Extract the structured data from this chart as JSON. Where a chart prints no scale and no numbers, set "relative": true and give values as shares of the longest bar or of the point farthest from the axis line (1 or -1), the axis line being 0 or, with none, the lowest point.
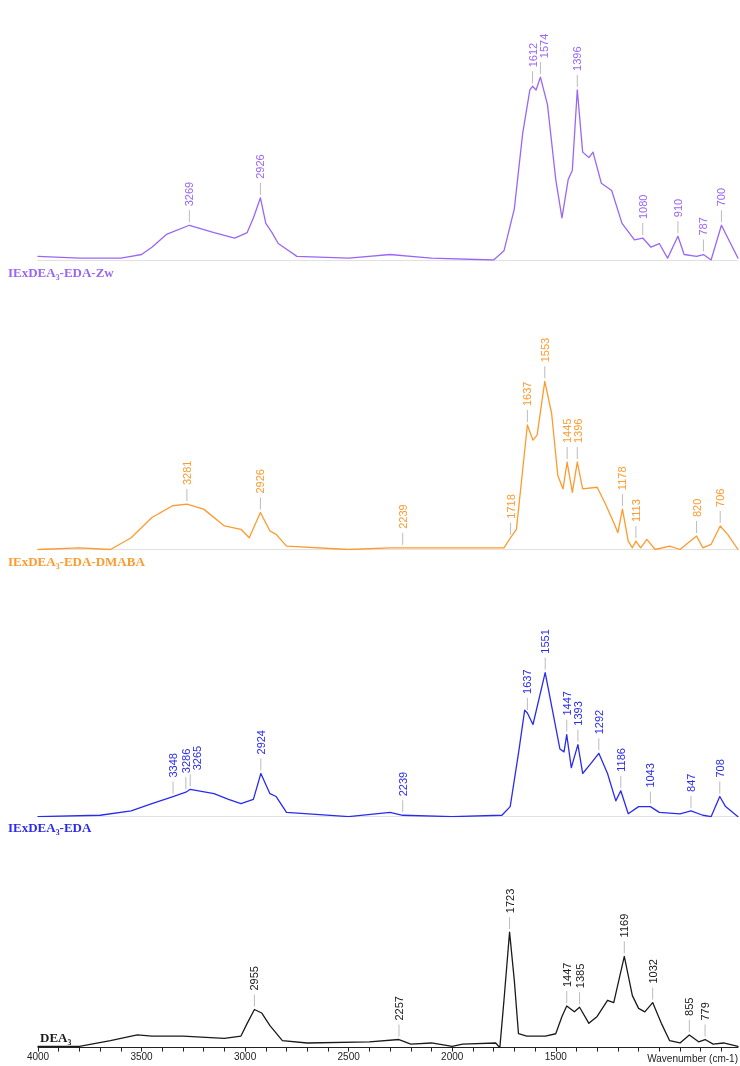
{
  "chart_data": [
    {
      "type": "line",
      "relative": true,
      "xlim": [
        4000,
        620
      ],
      "tick_labels": false,
      "series": [
        {
          "name": "IExDEA₃-EDA-Zw",
          "color": "#9a66f5",
          "x": [
            4000,
            3800,
            3600,
            3500,
            3450,
            3380,
            3269,
            3150,
            3050,
            2990,
            2960,
            2926,
            2900,
            2870,
            2840,
            2750,
            2500,
            2300,
            2100,
            1800,
            1750,
            1700,
            1660,
            1625,
            1612,
            1595,
            1574,
            1540,
            1500,
            1470,
            1440,
            1420,
            1396,
            1370,
            1340,
            1320,
            1280,
            1230,
            1180,
            1120,
            1080,
            1040,
            1000,
            960,
            910,
            880,
            820,
            787,
            750,
            700,
            660,
            620
          ],
          "values": [
            0.02,
            0.01,
            0.01,
            0.03,
            0.07,
            0.14,
            0.19,
            0.15,
            0.12,
            0.15,
            0.23,
            0.34,
            0.2,
            0.15,
            0.09,
            0.02,
            0.01,
            0.03,
            0.01,
            0,
            0.05,
            0.28,
            0.69,
            0.93,
            0.95,
            0.93,
            1,
            0.85,
            0.44,
            0.23,
            0.44,
            0.49,
            0.93,
            0.59,
            0.56,
            0.59,
            0.42,
            0.38,
            0.2,
            0.11,
            0.12,
            0.07,
            0.09,
            0.01,
            0.13,
            0.03,
            0.02,
            0.03,
            0,
            0.19,
            0.1,
            0.01
          ]
        }
      ],
      "annotations": [
        {
          "text": "3269",
          "x": 3269,
          "y": 0.19
        },
        {
          "text": "2926",
          "x": 2926,
          "y": 0.34
        },
        {
          "text": "1612",
          "x": 1612,
          "y": 0.95
        },
        {
          "text": "1574",
          "x": 1574,
          "y": 1
        },
        {
          "text": "1396",
          "x": 1396,
          "y": 0.93
        },
        {
          "text": "1080",
          "x": 1080,
          "y": 0.12
        },
        {
          "text": "910",
          "x": 910,
          "y": 0.13
        },
        {
          "text": "787",
          "x": 787,
          "y": 0.03
        },
        {
          "text": "700",
          "x": 700,
          "y": 0.19
        }
      ]
    },
    {
      "type": "line",
      "relative": true,
      "xlim": [
        4000,
        620
      ],
      "tick_labels": false,
      "series": [
        {
          "name": "IExDEA₃-EDA-DMABA",
          "color": "#ff9a2e",
          "x": [
            4000,
            3800,
            3650,
            3550,
            3450,
            3350,
            3281,
            3200,
            3100,
            3020,
            2980,
            2926,
            2880,
            2850,
            2800,
            2500,
            2300,
            2239,
            2000,
            1750,
            1718,
            1690,
            1665,
            1637,
            1610,
            1590,
            1553,
            1520,
            1490,
            1465,
            1445,
            1420,
            1396,
            1370,
            1300,
            1260,
            1220,
            1200,
            1178,
            1150,
            1130,
            1113,
            1090,
            1060,
            1020,
            950,
            900,
            850,
            820,
            790,
            750,
            706,
            670,
            620
          ],
          "values": [
            0,
            0.01,
            0,
            0.07,
            0.19,
            0.26,
            0.27,
            0.24,
            0.14,
            0.12,
            0.07,
            0.22,
            0.11,
            0.09,
            0.02,
            0,
            0.01,
            0.01,
            0.01,
            0.01,
            0.07,
            0.12,
            0.41,
            0.74,
            0.65,
            0.68,
            1,
            0.81,
            0.44,
            0.36,
            0.52,
            0.34,
            0.52,
            0.36,
            0.37,
            0.27,
            0.16,
            0.1,
            0.24,
            0.05,
            0.01,
            0.05,
            0.01,
            0.06,
            0,
            0.02,
            0,
            0.05,
            0.08,
            0.01,
            0.03,
            0.14,
            0.09,
            0
          ]
        }
      ],
      "annotations": [
        {
          "text": "3281",
          "x": 3281,
          "y": 0.27
        },
        {
          "text": "2926",
          "x": 2926,
          "y": 0.22
        },
        {
          "text": "2239",
          "x": 2239,
          "y": 0.01
        },
        {
          "text": "1718",
          "x": 1718,
          "y": 0.07
        },
        {
          "text": "1637",
          "x": 1637,
          "y": 0.74
        },
        {
          "text": "1553",
          "x": 1553,
          "y": 1
        },
        {
          "text": "1445",
          "x": 1445,
          "y": 0.52
        },
        {
          "text": "1396",
          "x": 1396,
          "y": 0.52
        },
        {
          "text": "1178",
          "x": 1178,
          "y": 0.24
        },
        {
          "text": "1113",
          "x": 1113,
          "y": 0.05
        },
        {
          "text": "820",
          "x": 820,
          "y": 0.08
        },
        {
          "text": "706",
          "x": 706,
          "y": 0.14
        }
      ]
    },
    {
      "type": "line",
      "relative": true,
      "xlim": [
        4000,
        620
      ],
      "tick_labels": false,
      "series": [
        {
          "name": "IExDEA₃-EDA",
          "color": "#2b2bf0",
          "x": [
            4000,
            3700,
            3550,
            3450,
            3348,
            3286,
            3265,
            3150,
            3080,
            3020,
            2960,
            2924,
            2880,
            2850,
            2800,
            2500,
            2300,
            2239,
            2000,
            1760,
            1720,
            1680,
            1650,
            1637,
            1610,
            1551,
            1520,
            1480,
            1460,
            1447,
            1425,
            1393,
            1370,
            1330,
            1292,
            1250,
            1210,
            1186,
            1150,
            1100,
            1043,
            1000,
            900,
            847,
            790,
            750,
            708,
            680,
            620
          ],
          "values": [
            0,
            0.01,
            0.04,
            0.09,
            0.14,
            0.17,
            0.19,
            0.16,
            0.12,
            0.09,
            0.12,
            0.3,
            0.16,
            0.14,
            0.03,
            0,
            0.03,
            0.01,
            0,
            0.01,
            0.07,
            0.44,
            0.74,
            0.72,
            0.64,
            1,
            0.77,
            0.47,
            0.45,
            0.57,
            0.34,
            0.5,
            0.3,
            0.37,
            0.44,
            0.3,
            0.11,
            0.18,
            0.02,
            0.07,
            0.07,
            0.03,
            0.02,
            0.04,
            0.01,
            0,
            0.14,
            0.07,
            0
          ]
        }
      ],
      "annotations": [
        {
          "text": "3348",
          "x": 3348,
          "y": 0.14
        },
        {
          "text": "3286",
          "x": 3286,
          "y": 0.17
        },
        {
          "text": "3265",
          "x": 3265,
          "y": 0.19
        },
        {
          "text": "2924",
          "x": 2924,
          "y": 0.3
        },
        {
          "text": "2239",
          "x": 2239,
          "y": 0.01
        },
        {
          "text": "1637",
          "x": 1637,
          "y": 0.72
        },
        {
          "text": "1551",
          "x": 1551,
          "y": 1
        },
        {
          "text": "1447",
          "x": 1447,
          "y": 0.57
        },
        {
          "text": "1393",
          "x": 1393,
          "y": 0.5
        },
        {
          "text": "1292",
          "x": 1292,
          "y": 0.44
        },
        {
          "text": "1186",
          "x": 1186,
          "y": 0.18
        },
        {
          "text": "1043",
          "x": 1043,
          "y": 0.07
        },
        {
          "text": "847",
          "x": 847,
          "y": 0.04
        },
        {
          "text": "708",
          "x": 708,
          "y": 0.14
        }
      ]
    },
    {
      "type": "line",
      "relative": true,
      "xlim": [
        4000,
        620
      ],
      "tick_labels": "x",
      "xlabel": "Wavenumber (cm-1)",
      "xticks": [
        4000,
        {
          "value": 3900,
          "label": null
        },
        {
          "value": 3800,
          "label": null
        },
        {
          "value": 3700,
          "label": null
        },
        {
          "value": 3600,
          "label": null
        },
        3500,
        {
          "value": 3400,
          "label": null
        },
        {
          "value": 3300,
          "label": null
        },
        {
          "value": 3200,
          "label": null
        },
        {
          "value": 3100,
          "label": null
        },
        3000,
        {
          "value": 2900,
          "label": null
        },
        {
          "value": 2800,
          "label": null
        },
        {
          "value": 2700,
          "label": null
        },
        {
          "value": 2600,
          "label": null
        },
        2500,
        {
          "value": 2400,
          "label": null
        },
        {
          "value": 2300,
          "label": null
        },
        {
          "value": 2200,
          "label": null
        },
        {
          "value": 2100,
          "label": null
        },
        2000,
        {
          "value": 1900,
          "label": null
        },
        {
          "value": 1800,
          "label": null
        },
        {
          "value": 1700,
          "label": null
        },
        {
          "value": 1600,
          "label": null
        },
        1500,
        {
          "value": 1400,
          "label": null
        },
        {
          "value": 1300,
          "label": null
        },
        {
          "value": 1200,
          "label": null
        },
        {
          "value": 1100,
          "label": null
        },
        {
          "value": 1000,
          "label": null
        },
        {
          "value": 900,
          "label": null
        },
        {
          "value": 800,
          "label": null
        },
        {
          "value": 700,
          "label": null
        }
      ],
      "series": [
        {
          "name": "DEA₃",
          "color": "#1a1a1a",
          "x": [
            4000,
            3800,
            3650,
            3600,
            3520,
            3450,
            3300,
            3100,
            3020,
            2990,
            2955,
            2920,
            2880,
            2820,
            2700,
            2400,
            2257,
            2200,
            2100,
            2000,
            1950,
            1790,
            1770,
            1750,
            1723,
            1700,
            1680,
            1640,
            1550,
            1500,
            1470,
            1447,
            1410,
            1385,
            1340,
            1300,
            1250,
            1220,
            1169,
            1130,
            1100,
            1070,
            1032,
            990,
            950,
            900,
            855,
            810,
            779,
            740,
            690,
            620
          ],
          "values": [
            0.01,
            0.01,
            0.06,
            0.08,
            0.11,
            0.1,
            0.1,
            0.08,
            0.1,
            0.21,
            0.33,
            0.3,
            0.19,
            0.06,
            0.04,
            0.05,
            0.07,
            0.03,
            0.04,
            0.01,
            0.03,
            0.04,
            0,
            0.41,
            1,
            0.58,
            0.12,
            0.1,
            0.1,
            0.12,
            0.27,
            0.36,
            0.31,
            0.35,
            0.21,
            0.27,
            0.41,
            0.39,
            0.79,
            0.45,
            0.34,
            0.31,
            0.39,
            0.21,
            0.06,
            0.04,
            0.11,
            0.05,
            0.07,
            0.03,
            0.04,
            0.01
          ]
        }
      ],
      "annotations": [
        {
          "text": "2955",
          "x": 2955,
          "y": 0.33
        },
        {
          "text": "2257",
          "x": 2257,
          "y": 0.07
        },
        {
          "text": "1723",
          "x": 1723,
          "y": 1
        },
        {
          "text": "1447",
          "x": 1447,
          "y": 0.36
        },
        {
          "text": "1385",
          "x": 1385,
          "y": 0.35
        },
        {
          "text": "1169",
          "x": 1169,
          "y": 0.79
        },
        {
          "text": "1032",
          "x": 1032,
          "y": 0.39
        },
        {
          "text": "855",
          "x": 855,
          "y": 0.11
        },
        {
          "text": "779",
          "x": 779,
          "y": 0.07
        }
      ]
    }
  ]
}
